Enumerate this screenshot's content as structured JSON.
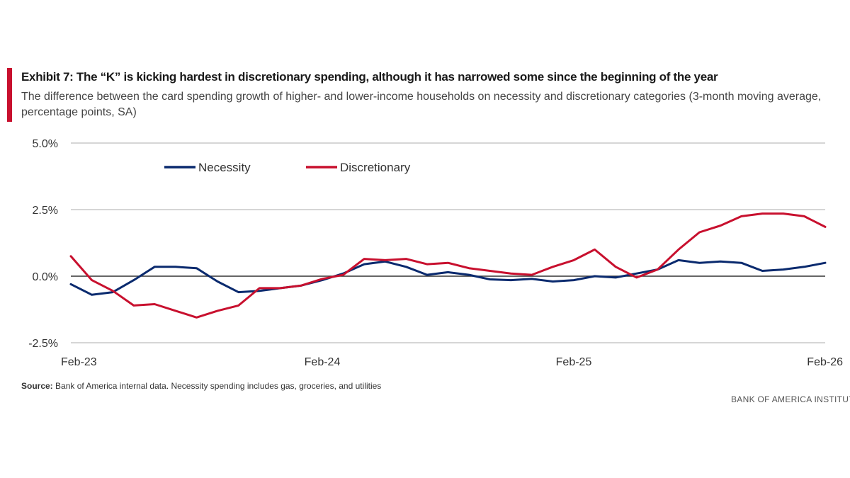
{
  "header": {
    "title": "Exhibit 7: The “K” is kicking hardest in discretionary spending, although it has narrowed some since the beginning of the year",
    "subtitle": "The difference between the card spending growth of higher- and lower-income households on necessity and discretionary categories (3-month moving average, percentage points, SA)"
  },
  "footer": {
    "source_label": "Source:",
    "source_text": "Bank of America internal data. Necessity spending includes gas, groceries, and utilities",
    "brand": "BANK OF AMERICA INSTITUTE"
  },
  "colors": {
    "accent": "#c8102e",
    "necessity": "#0a2a6e",
    "discretionary": "#c8102e",
    "grid": "#c8c8c8",
    "zero_line": "#333333"
  },
  "chart_data": {
    "type": "line",
    "title": "Exhibit 7: The “K” is kicking hardest in discretionary spending, although it has narrowed some since the beginning of the year",
    "xlabel": "",
    "ylabel": "",
    "ylim": [
      -2.5,
      5.0
    ],
    "y_ticks": [
      5.0,
      2.5,
      0.0,
      -2.5
    ],
    "y_tick_labels": [
      "5.0%",
      "2.5%",
      "0.0%",
      "-2.5%"
    ],
    "x_tick_labels": [
      "Feb-23",
      "Feb-24",
      "Feb-25",
      "Feb-26"
    ],
    "x_tick_index": [
      0,
      12,
      24,
      36
    ],
    "legend": "top-left",
    "grid": true,
    "x": [
      "Feb-23",
      "Mar-23",
      "Apr-23",
      "May-23",
      "Jun-23",
      "Jul-23",
      "Aug-23",
      "Sep-23",
      "Oct-23",
      "Nov-23",
      "Dec-23",
      "Jan-24",
      "Feb-24",
      "Mar-24",
      "Apr-24",
      "May-24",
      "Jun-24",
      "Jul-24",
      "Aug-24",
      "Sep-24",
      "Oct-24",
      "Nov-24",
      "Dec-24",
      "Jan-25",
      "Feb-25",
      "Mar-25",
      "Apr-25",
      "May-25",
      "Jun-25",
      "Jul-25",
      "Aug-25",
      "Sep-25",
      "Oct-25",
      "Nov-25",
      "Dec-25",
      "Jan-26",
      "Feb-26"
    ],
    "series": [
      {
        "name": "Necessity",
        "color": "#0a2a6e",
        "values": [
          -0.3,
          -0.7,
          -0.6,
          -0.15,
          0.35,
          0.35,
          0.3,
          -0.2,
          -0.6,
          -0.55,
          -0.45,
          -0.35,
          -0.15,
          0.1,
          0.45,
          0.55,
          0.35,
          0.05,
          0.15,
          0.05,
          -0.12,
          -0.15,
          -0.1,
          -0.2,
          -0.15,
          0.0,
          -0.05,
          0.1,
          0.25,
          0.6,
          0.5,
          0.55,
          0.5,
          0.2,
          0.25,
          0.35,
          0.5
        ]
      },
      {
        "name": "Discretionary",
        "color": "#c8102e",
        "values": [
          0.75,
          -0.15,
          -0.55,
          -1.1,
          -1.05,
          -1.3,
          -1.55,
          -1.3,
          -1.1,
          -0.45,
          -0.45,
          -0.35,
          -0.1,
          0.05,
          0.65,
          0.6,
          0.65,
          0.45,
          0.5,
          0.3,
          0.2,
          0.1,
          0.05,
          0.35,
          0.6,
          1.0,
          0.35,
          -0.05,
          0.25,
          1.0,
          1.65,
          1.9,
          2.25,
          2.35,
          2.35,
          2.25,
          1.85
        ]
      }
    ]
  }
}
